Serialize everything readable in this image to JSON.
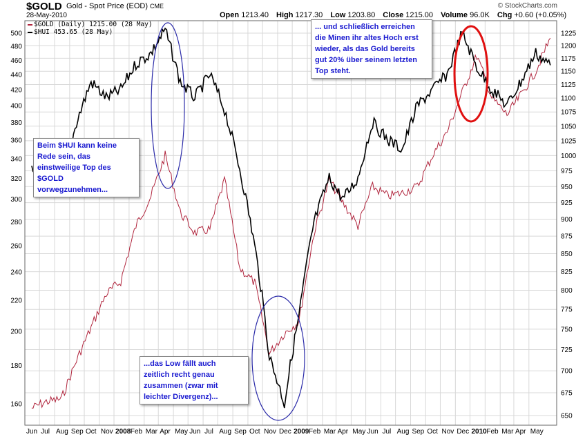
{
  "header": {
    "symbol": "$GOLD",
    "description": "Gold - Spot Price (EOD)",
    "exchange": "CME",
    "date": "28-May-2010",
    "brand": "© StockCharts.com",
    "open_label": "Open",
    "open": "1213.40",
    "high_label": "High",
    "high": "1217.30",
    "low_label": "Low",
    "low": "1203.80",
    "close_label": "Close",
    "close": "1215.00",
    "volume_label": "Volume",
    "volume": "96.0K",
    "chg_label": "Chg",
    "chg": "+0.60 (+0.05%)"
  },
  "legend": {
    "gold": "$GOLD (Daily) 1215.00 (28 May)",
    "hui": "$HUI 453.65 (28 May)"
  },
  "annotations": {
    "hui_note": [
      "Beim $HUI kann keine",
      "Rede sein, das",
      "einstweilige Top des",
      "$GOLD",
      "vorwegzunehmen..."
    ],
    "low_note": [
      "...das Low fällt auch",
      "zeitlich recht genau",
      "zusammen (zwar mit",
      "leichter Divergenz)..."
    ],
    "top_note": [
      "... und schließlich erreichen",
      "die Minen ihr altes Hoch erst",
      "wieder, als das Gold bereits",
      "gut 20% über seinem letzten",
      "Top steht."
    ]
  },
  "colors": {
    "gold_line": "#b0243c",
    "hui_line": "#000000",
    "ellipse_blue": "#2a2aa8",
    "ellipse_red": "#e01010",
    "grid": "#d8d8d8"
  },
  "chart_data": {
    "type": "line",
    "left_axis": {
      "ticks": [
        160,
        180,
        200,
        220,
        240,
        260,
        280,
        300,
        320,
        340,
        360,
        380,
        400,
        420,
        440,
        460,
        480,
        500
      ],
      "series": "$HUI",
      "scale": "log"
    },
    "right_axis": {
      "ticks": [
        650,
        675,
        700,
        725,
        750,
        775,
        800,
        825,
        850,
        875,
        900,
        925,
        950,
        975,
        1000,
        1025,
        1050,
        1075,
        1100,
        1125,
        1150,
        1175,
        1200,
        1225
      ],
      "series": "$GOLD",
      "scale": "log"
    },
    "x_labels": [
      "Jun",
      "Jul",
      "Aug",
      "Sep",
      "Oct",
      "Nov",
      "2008",
      "Feb",
      "Mar",
      "Apr",
      "May",
      "Jun",
      "Jul",
      "Aug",
      "Sep",
      "Oct",
      "Nov",
      "Dec",
      "2009",
      "Feb",
      "Mar",
      "Apr",
      "May",
      "Jun",
      "Jul",
      "Aug",
      "Sep",
      "Oct",
      "Nov",
      "Dec",
      "2010",
      "Feb",
      "Mar",
      "Apr",
      "May"
    ],
    "x_bold": [
      "2008",
      "2009",
      "2010"
    ],
    "x_range": [
      "2007-06",
      "2010-05-28"
    ],
    "series": [
      {
        "name": "$GOLD (Daily)",
        "axis": "right",
        "x": [
          "2007-06",
          "2007-07",
          "2007-08",
          "2007-09",
          "2007-10",
          "2007-11",
          "2007-12",
          "2008-01",
          "2008-02",
          "2008-03",
          "2008-04",
          "2008-05",
          "2008-06",
          "2008-07",
          "2008-08",
          "2008-09",
          "2008-10",
          "2008-11",
          "2008-12",
          "2009-01",
          "2009-02",
          "2009-03",
          "2009-04",
          "2009-05",
          "2009-06",
          "2009-07",
          "2009-08",
          "2009-09",
          "2009-10",
          "2009-11",
          "2009-12",
          "2010-01",
          "2010-02",
          "2010-03",
          "2010-04",
          "2010-05"
        ],
        "values": [
          658,
          665,
          668,
          712,
          752,
          795,
          812,
          890,
          935,
          1000,
          910,
          880,
          885,
          960,
          830,
          810,
          720,
          745,
          760,
          880,
          960,
          925,
          890,
          950,
          935,
          940,
          950,
          1000,
          1040,
          1110,
          1180,
          1100,
          1070,
          1105,
          1150,
          1215
        ]
      },
      {
        "name": "$HUI",
        "axis": "left",
        "x": [
          "2007-06",
          "2007-07",
          "2007-08",
          "2007-09",
          "2007-10",
          "2007-11",
          "2007-12",
          "2008-01",
          "2008-02",
          "2008-03",
          "2008-04",
          "2008-05",
          "2008-06",
          "2008-07",
          "2008-08",
          "2008-09",
          "2008-10",
          "2008-11",
          "2008-12",
          "2009-01",
          "2009-02",
          "2009-03",
          "2009-04",
          "2009-05",
          "2009-06",
          "2009-07",
          "2009-08",
          "2009-09",
          "2009-10",
          "2009-11",
          "2009-12",
          "2010-01",
          "2010-02",
          "2010-03",
          "2010-04",
          "2010-05"
        ],
        "values": [
          330,
          350,
          310,
          380,
          430,
          410,
          420,
          455,
          470,
          505,
          430,
          410,
          440,
          395,
          330,
          260,
          185,
          160,
          210,
          280,
          320,
          300,
          320,
          380,
          360,
          350,
          400,
          420,
          440,
          500,
          450,
          420,
          400,
          430,
          470,
          453
        ]
      }
    ]
  }
}
